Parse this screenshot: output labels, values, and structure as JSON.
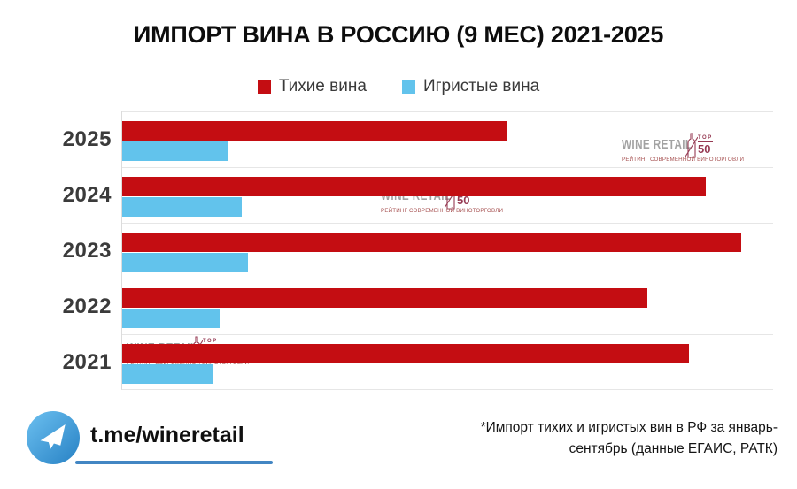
{
  "header": {
    "title": "ИМПОРТ ВИНА В РОССИЮ (9 МЕС) 2021-2025"
  },
  "legend": {
    "items": [
      {
        "label": "Тихие вина",
        "color": "#c40d12"
      },
      {
        "label": "Игристые вина",
        "color": "#62c3ec"
      }
    ]
  },
  "chart_data": {
    "type": "bar",
    "orientation": "horizontal",
    "title": "ИМПОРТ ВИНА В РОССИЮ (9 МЕС) 2021-2025",
    "categories": [
      "2025",
      "2024",
      "2023",
      "2022",
      "2021"
    ],
    "series": [
      {
        "name": "Тихие вина",
        "color": "#c40d12",
        "values": [
          59.2,
          89.7,
          95.1,
          80.7,
          87.1
        ]
      },
      {
        "name": "Игристые вина",
        "color": "#62c3ec",
        "values": [
          16.3,
          18.3,
          19.3,
          15.0,
          13.9
        ]
      }
    ],
    "value_axis": {
      "visible": false,
      "note": "no numeric labels or gridline values shown; values are bar lengths as percent of plot width",
      "range_pct": [
        0,
        100
      ]
    },
    "legend_position": "top",
    "grid": "horizontal row separator lines only"
  },
  "watermark": {
    "brand": "WINE RETAIL",
    "top_label": "TOP",
    "rank_label": "50",
    "subtitle": "РЕЙТИНГ СОВРЕМЕННОЙ ВИНОТОРГОВЛИ"
  },
  "footer": {
    "telegram_handle": "t.me/wineretail",
    "note_line1": "*Импорт тихих и игристых вин в РФ за январь-",
    "note_line2": "сентябрь (данные ЕГАИС, РАТК)"
  },
  "colors": {
    "still_wine_red": "#c40d12",
    "sparkling_wine_blue": "#62c3ec",
    "telegram_blue": "#4286c3",
    "watermark_accent": "#8e2a45",
    "separator_gray": "#e6e6e6"
  }
}
